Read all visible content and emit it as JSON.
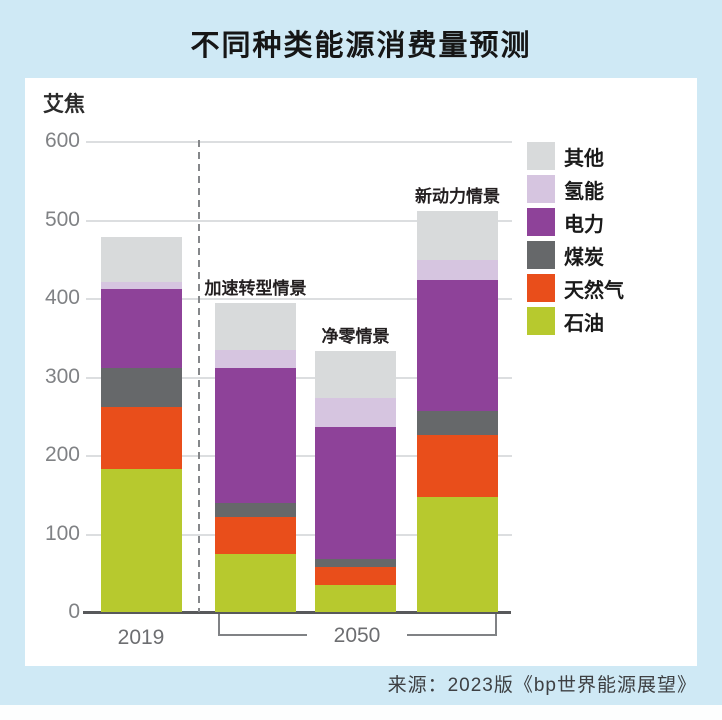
{
  "title": "不同种类能源消费量预测",
  "unit_label": "艾焦",
  "source": "来源：2023版《bp世界能源展望》",
  "colors": {
    "background": "#cfe9f5",
    "panel": "#ffffff",
    "oil": "#b7c92e",
    "gas": "#e94e1b",
    "coal": "#66686a",
    "electricity": "#8e4299",
    "hydrogen": "#d6c5e0",
    "other": "#d8dadb"
  },
  "legend": [
    {
      "label": "其他",
      "color": "#d8dadb"
    },
    {
      "label": "氢能",
      "color": "#d6c5e0"
    },
    {
      "label": "电力",
      "color": "#8e4299"
    },
    {
      "label": "煤炭",
      "color": "#66686a"
    },
    {
      "label": "天然气",
      "color": "#e94e1b"
    },
    {
      "label": "石油",
      "color": "#b7c92e"
    }
  ],
  "chart_data": {
    "type": "bar",
    "stacked": true,
    "title": "不同种类能源消费量预测",
    "ylabel": "艾焦",
    "ylim": [
      0,
      600
    ],
    "ytick_step": 100,
    "yticks": [
      0,
      100,
      200,
      300,
      400,
      500,
      600
    ],
    "grid": true,
    "legend_position": "right",
    "categories": [
      "2019",
      "加速转型情景",
      "净零情景",
      "新动力情景"
    ],
    "annotations": [
      "",
      "加速转型情景",
      "净零情景",
      "新动力情景"
    ],
    "series": [
      {
        "name": "石油",
        "color": "#b7c92e",
        "values": [
          182,
          74,
          35,
          147
        ]
      },
      {
        "name": "天然气",
        "color": "#e94e1b",
        "values": [
          79,
          47,
          22,
          79
        ]
      },
      {
        "name": "煤炭",
        "color": "#66686a",
        "values": [
          50,
          18,
          11,
          30
        ]
      },
      {
        "name": "电力",
        "color": "#8e4299",
        "values": [
          100,
          172,
          168,
          167
        ]
      },
      {
        "name": "氢能",
        "color": "#d6c5e0",
        "values": [
          10,
          23,
          36,
          25
        ]
      },
      {
        "name": "其他",
        "color": "#d8dadb",
        "values": [
          57,
          59,
          60,
          63
        ]
      }
    ],
    "totals": [
      478,
      393,
      332,
      511
    ],
    "x_groups": [
      {
        "label": "2019",
        "bars": [
          0
        ]
      },
      {
        "label": "2050",
        "bars": [
          1,
          2,
          3
        ]
      }
    ]
  }
}
